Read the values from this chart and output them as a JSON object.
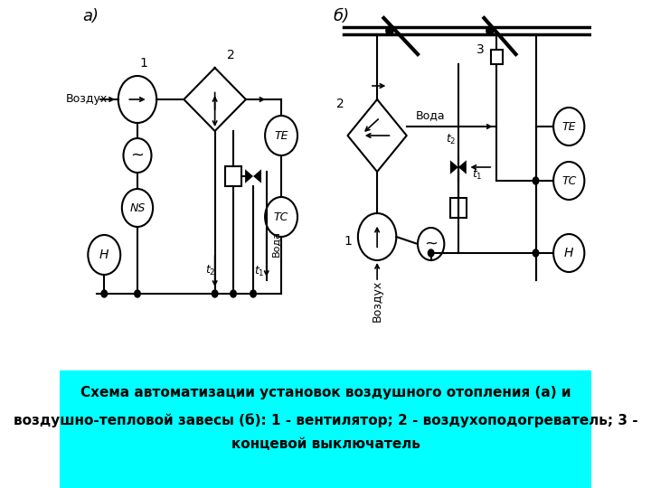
{
  "bg_color": "#ffffff",
  "caption_bg": "#00ffff",
  "caption_text_line1": "Схема автоматизации установок воздушного отопления (а) и",
  "caption_text_line2": "воздушно-тепловой завесы (б): 1 - вентилятор; 2 - воздухоподогреватель; 3 -",
  "caption_text_line3": "концевой выключатель",
  "label_a": "а)",
  "label_b": "б)"
}
